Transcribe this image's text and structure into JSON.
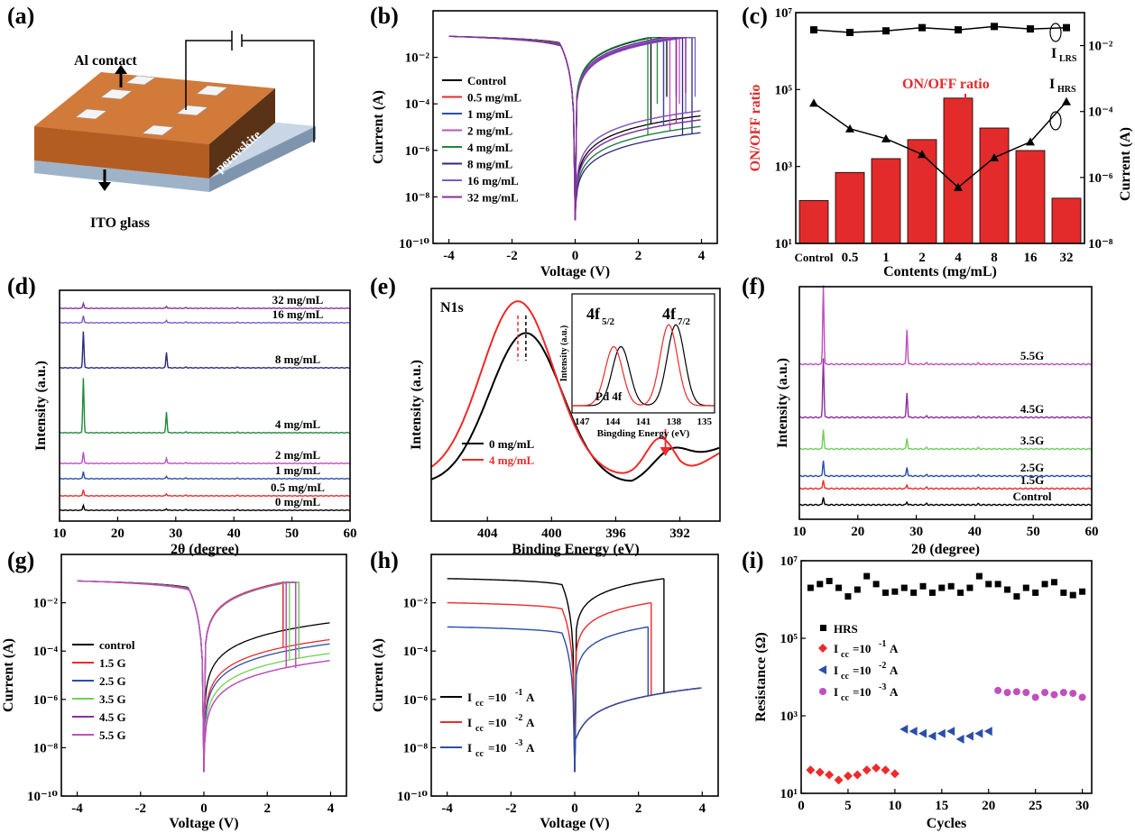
{
  "colors": {
    "black": "#000000",
    "red": "#ee2a2a",
    "blue": "#2b4ea8",
    "green": "#1e8a3c",
    "navy": "#2a2a7c",
    "violet": "#7a5ac8",
    "purple": "#8b2e9e",
    "lightgreen": "#6fcf5a",
    "magenta": "#c04fbf",
    "bar": "#e32b2b",
    "orange": "#c8692e",
    "substrate": "#a9bed4"
  },
  "panel_a": {
    "label": "(a)",
    "al_contact": "Al contact",
    "perovskite": "perovskite",
    "ito": "ITO glass"
  },
  "chart_data": [
    {
      "id": "b",
      "label": "(b)",
      "type": "line",
      "yscale": "log",
      "xlabel": "Voltage (V)",
      "ylabel": "Current (A)",
      "xlim": [
        -4.5,
        4.5
      ],
      "ylim": [
        1e-10,
        1
      ],
      "xticks": [
        "-4",
        "-2",
        "0",
        "2",
        "4"
      ],
      "yticks": [
        "10⁻¹⁰",
        "10⁻⁸",
        "10⁻⁶",
        "10⁻⁴",
        "10⁻²"
      ],
      "legend": [
        "Control",
        "0.5 mg/mL",
        "1 mg/mL",
        "2 mg/mL",
        "4 mg/mL",
        "8 mg/mL",
        "16 mg/mL",
        "32 mg/mL"
      ],
      "series": [
        {
          "name": "Control",
          "color_key": "black",
          "set_v": 2.4,
          "hrs_end": 3e-05,
          "lrs_set": 0.0002,
          "v_on": 2.6
        },
        {
          "name": "0.5 mg/mL",
          "color_key": "red",
          "set_v": 2.8,
          "hrs_end": 5e-05,
          "lrs_set": 0.0003,
          "v_on": 2.9
        },
        {
          "name": "1 mg/mL",
          "color_key": "blue",
          "set_v": 2.8,
          "hrs_end": 2e-05,
          "lrs_set": 0.0002,
          "v_on": 2.9
        },
        {
          "name": "2 mg/mL",
          "color_key": "magenta",
          "set_v": 3.0,
          "hrs_end": 1e-05,
          "lrs_set": 0.0001,
          "v_on": 3.0
        },
        {
          "name": "4 mg/mL",
          "color_key": "green",
          "set_v": 2.3,
          "hrs_end": 1e-05,
          "lrs_set": 0.0001,
          "v_on": 2.3
        },
        {
          "name": "8 mg/mL",
          "color_key": "navy",
          "set_v": 3.4,
          "hrs_end": 5e-06,
          "lrs_set": 5e-06,
          "v_on": 3.4
        },
        {
          "name": "16 mg/mL",
          "color_key": "violet",
          "set_v": 3.5,
          "hrs_end": 5e-05,
          "lrs_set": 0.0002,
          "v_on": 3.5
        },
        {
          "name": "32 mg/mL",
          "color_key": "purple",
          "set_v": 3.2,
          "hrs_end": 2e-05,
          "lrs_set": 0.0003,
          "v_on": 3.2
        }
      ]
    },
    {
      "id": "c",
      "label": "(c)",
      "type": "bar",
      "xlabel": "Contents (mg/mL)",
      "ylabel": "ON/OFF ratio",
      "ylabel_right": "Current (A)",
      "categories": [
        "Control",
        "0.5",
        "1",
        "2",
        "4",
        "8",
        "16",
        "32"
      ],
      "values": [
        130,
        700,
        1600,
        5000,
        60000,
        10000,
        2600,
        150
      ],
      "ylim": [
        10,
        10000000.0
      ],
      "yticks": [
        "10¹",
        "10³",
        "10⁵",
        "10⁷"
      ],
      "yticks_right": [
        "10⁻⁸",
        "10⁻⁶",
        "10⁻⁴",
        "10⁻²"
      ],
      "lrs": [
        0.03,
        0.025,
        0.028,
        0.035,
        0.03,
        0.038,
        0.032,
        0.035
      ],
      "hrs": [
        0.00018,
        3e-05,
        1.5e-05,
        5e-06,
        5e-07,
        4e-06,
        1.2e-05,
        0.0002
      ],
      "annotation": "ON/OFF ratio",
      "i_lrs": "I",
      "i_lrs_sub": "LRS",
      "i_hrs": "I",
      "i_hrs_sub": "HRS"
    },
    {
      "id": "d",
      "label": "(d)",
      "type": "line",
      "xlabel": "2θ (degree)",
      "ylabel": "Intensity (a.u.)",
      "xlim": [
        10,
        60
      ],
      "xticks": [
        "10",
        "20",
        "30",
        "40",
        "50",
        "60"
      ],
      "series": [
        {
          "name": "0 mg/mL",
          "color_key": "black",
          "h1": 1.0,
          "h2": 0.3
        },
        {
          "name": "0.5 mg/mL",
          "color_key": "red",
          "h1": 1.2,
          "h2": 0.4
        },
        {
          "name": "1 mg/mL",
          "color_key": "blue",
          "h1": 1.4,
          "h2": 0.5
        },
        {
          "name": "2 mg/mL",
          "color_key": "magenta",
          "h1": 2.2,
          "h2": 1.0
        },
        {
          "name": "4 mg/mL",
          "color_key": "green",
          "h1": 10.5,
          "h2": 4.0
        },
        {
          "name": "8 mg/mL",
          "color_key": "navy",
          "h1": 7.0,
          "h2": 3.0
        },
        {
          "name": "16 mg/mL",
          "color_key": "violet",
          "h1": 1.4,
          "h2": 0.5
        },
        {
          "name": "32 mg/mL",
          "color_key": "purple",
          "h1": 1.0,
          "h2": 0.4
        }
      ]
    },
    {
      "id": "e",
      "label": "(e)",
      "type": "line",
      "xlabel": "Binding Energy (eV)",
      "ylabel": "Intensity (a.u.)",
      "xlim": [
        407.5,
        389.5
      ],
      "xticks": [
        "404",
        "400",
        "396",
        "392"
      ],
      "series_labels": [
        "0 mg/mL",
        "4 mg/mL"
      ],
      "title": "N1s",
      "inset": {
        "xlabel": "Bingding Energy (eV)",
        "ylabel": "Intensity (a.u.)",
        "xticks": [
          "147",
          "144",
          "141",
          "138",
          "135"
        ],
        "text": "Pd 4f",
        "peak1": "4f",
        "peak1_sub": "5/2",
        "peak2": "4f",
        "peak2_sub": "7/2"
      }
    },
    {
      "id": "f",
      "label": "(f)",
      "type": "line",
      "xlabel": "2θ (degree)",
      "ylabel": "Intensity (a.u.)",
      "xlim": [
        10,
        60
      ],
      "xticks": [
        "10",
        "20",
        "30",
        "40",
        "50",
        "60"
      ],
      "series": [
        {
          "name": "Control",
          "color_key": "black",
          "h1": 0.8,
          "h2": 0.3
        },
        {
          "name": "1.5G",
          "color_key": "red",
          "h1": 0.9,
          "h2": 0.4
        },
        {
          "name": "2.5G",
          "color_key": "blue",
          "h1": 1.6,
          "h2": 0.9
        },
        {
          "name": "3.5G",
          "color_key": "lightgreen",
          "h1": 2.0,
          "h2": 1.1
        },
        {
          "name": "4.5G",
          "color_key": "purple",
          "h1": 6.0,
          "h2": 2.5
        },
        {
          "name": "5.5G",
          "color_key": "magenta",
          "h1": 8.0,
          "h2": 3.5
        }
      ]
    },
    {
      "id": "g",
      "label": "(g)",
      "type": "line",
      "yscale": "log",
      "xlabel": "Voltage (V)",
      "ylabel": "Current (A)",
      "xlim": [
        -4.5,
        4.5
      ],
      "ylim": [
        1e-10,
        1
      ],
      "xticks": [
        "-4",
        "-2",
        "0",
        "2",
        "4"
      ],
      "yticks": [
        "10⁻¹⁰",
        "10⁻⁸",
        "10⁻⁶",
        "10⁻⁴",
        "10⁻²"
      ],
      "series": [
        {
          "name": "control",
          "color_key": "black",
          "set_v": 2.5,
          "hrs_end": 0.0015,
          "lrs_set": 0.0008,
          "v_on": 2.6
        },
        {
          "name": "1.5 G",
          "color_key": "red",
          "set_v": 2.5,
          "hrs_end": 0.0003,
          "lrs_set": 0.0002,
          "v_on": 2.6
        },
        {
          "name": "2.5 G",
          "color_key": "blue",
          "set_v": 2.6,
          "hrs_end": 0.0002,
          "lrs_set": 0.0001,
          "v_on": 2.7
        },
        {
          "name": "3.5 G",
          "color_key": "lightgreen",
          "set_v": 2.7,
          "hrs_end": 8e-05,
          "lrs_set": 5e-05,
          "v_on": 2.7
        },
        {
          "name": "4.5 G",
          "color_key": "purple",
          "set_v": 2.6,
          "hrs_end": 4e-05,
          "lrs_set": 2e-05,
          "v_on": 2.6
        },
        {
          "name": "5.5 G",
          "color_key": "magenta",
          "set_v": 2.6,
          "hrs_end": 4e-05,
          "lrs_set": 2e-05,
          "v_on": 2.6
        }
      ]
    },
    {
      "id": "h",
      "label": "(h)",
      "type": "line",
      "yscale": "log",
      "xlabel": "Voltage (V)",
      "ylabel": "Current (A)",
      "xlim": [
        -4.5,
        4.5
      ],
      "ylim": [
        1e-10,
        1
      ],
      "xticks": [
        "-4",
        "-2",
        "0",
        "2",
        "4"
      ],
      "yticks": [
        "10⁻¹⁰",
        "10⁻⁸",
        "10⁻⁶",
        "10⁻⁴",
        "10⁻²"
      ],
      "series": [
        {
          "name_main": "I",
          "name_sub": "cc",
          "name_eq": "=10",
          "name_sup": "-1",
          "name_unit": " A",
          "color_key": "black",
          "icc": 0.1,
          "set_v": 2.8
        },
        {
          "name_main": "I",
          "name_sub": "cc",
          "name_eq": "=10",
          "name_sup": "-2",
          "name_unit": " A",
          "color_key": "red",
          "icc": 0.01,
          "set_v": 2.4
        },
        {
          "name_main": "I",
          "name_sub": "cc",
          "name_eq": "=10",
          "name_sup": "-3",
          "name_unit": " A",
          "color_key": "blue",
          "icc": 0.001,
          "set_v": 2.3
        }
      ]
    },
    {
      "id": "i",
      "label": "(i)",
      "type": "scatter",
      "yscale": "log",
      "xlabel": "Cycles",
      "ylabel": "Resistance (Ω)",
      "xlim": [
        0,
        31
      ],
      "ylim": [
        10,
        10000000.0
      ],
      "xticks": [
        "0",
        "5",
        "10",
        "15",
        "20",
        "25",
        "30"
      ],
      "yticks": [
        "10¹",
        "10³",
        "10⁵",
        "10⁷"
      ],
      "series": [
        {
          "name": "HRS",
          "color_key": "black",
          "marker": "square",
          "x": [
            1,
            2,
            3,
            4,
            5,
            6,
            7,
            8,
            9,
            10,
            11,
            12,
            13,
            14,
            15,
            16,
            17,
            18,
            19,
            20,
            21,
            22,
            23,
            24,
            25,
            26,
            27,
            28,
            29,
            30
          ],
          "y": [
            2000000.0,
            2500000.0,
            3000000.0,
            2000000.0,
            1200000.0,
            1800000.0,
            4000000.0,
            2500000.0,
            1500000.0,
            1600000.0,
            2000000.0,
            1500000.0,
            2200000.0,
            1500000.0,
            2000000.0,
            2200000.0,
            1500000.0,
            2000000.0,
            4000000.0,
            2500000.0,
            2500000.0,
            1800000.0,
            1200000.0,
            2000000.0,
            1500000.0,
            2500000.0,
            2800000.0,
            1500000.0,
            1300000.0,
            1600000.0
          ]
        },
        {
          "name_main": "I",
          "name_sub": "cc",
          "name_eq": "=10",
          "name_sup": "-1",
          "name_unit": "A",
          "color_key": "red",
          "marker": "diamond",
          "x": [
            1,
            2,
            3,
            4,
            5,
            6,
            7,
            8,
            9,
            10
          ],
          "y": [
            40,
            35,
            30,
            22,
            28,
            30,
            40,
            45,
            40,
            32
          ]
        },
        {
          "name_main": "I",
          "name_sub": "cc",
          "name_eq": "=10",
          "name_sup": "-2",
          "name_unit": "A",
          "color_key": "blue",
          "marker": "triangle",
          "x": [
            11,
            12,
            13,
            14,
            15,
            16,
            17,
            18,
            19,
            20
          ],
          "y": [
            450,
            400,
            350,
            300,
            350,
            400,
            250,
            300,
            350,
            400
          ]
        },
        {
          "name_main": "I",
          "name_sub": "cc",
          "name_eq": "=10",
          "name_sup": "-3",
          "name_unit": "A",
          "color_key": "magenta",
          "marker": "circle",
          "x": [
            21,
            22,
            23,
            24,
            25,
            26,
            27,
            28,
            29,
            30
          ],
          "y": [
            4500,
            4000,
            4200,
            4000,
            3000,
            4000,
            3500,
            4000,
            3800,
            3000
          ]
        }
      ]
    }
  ]
}
